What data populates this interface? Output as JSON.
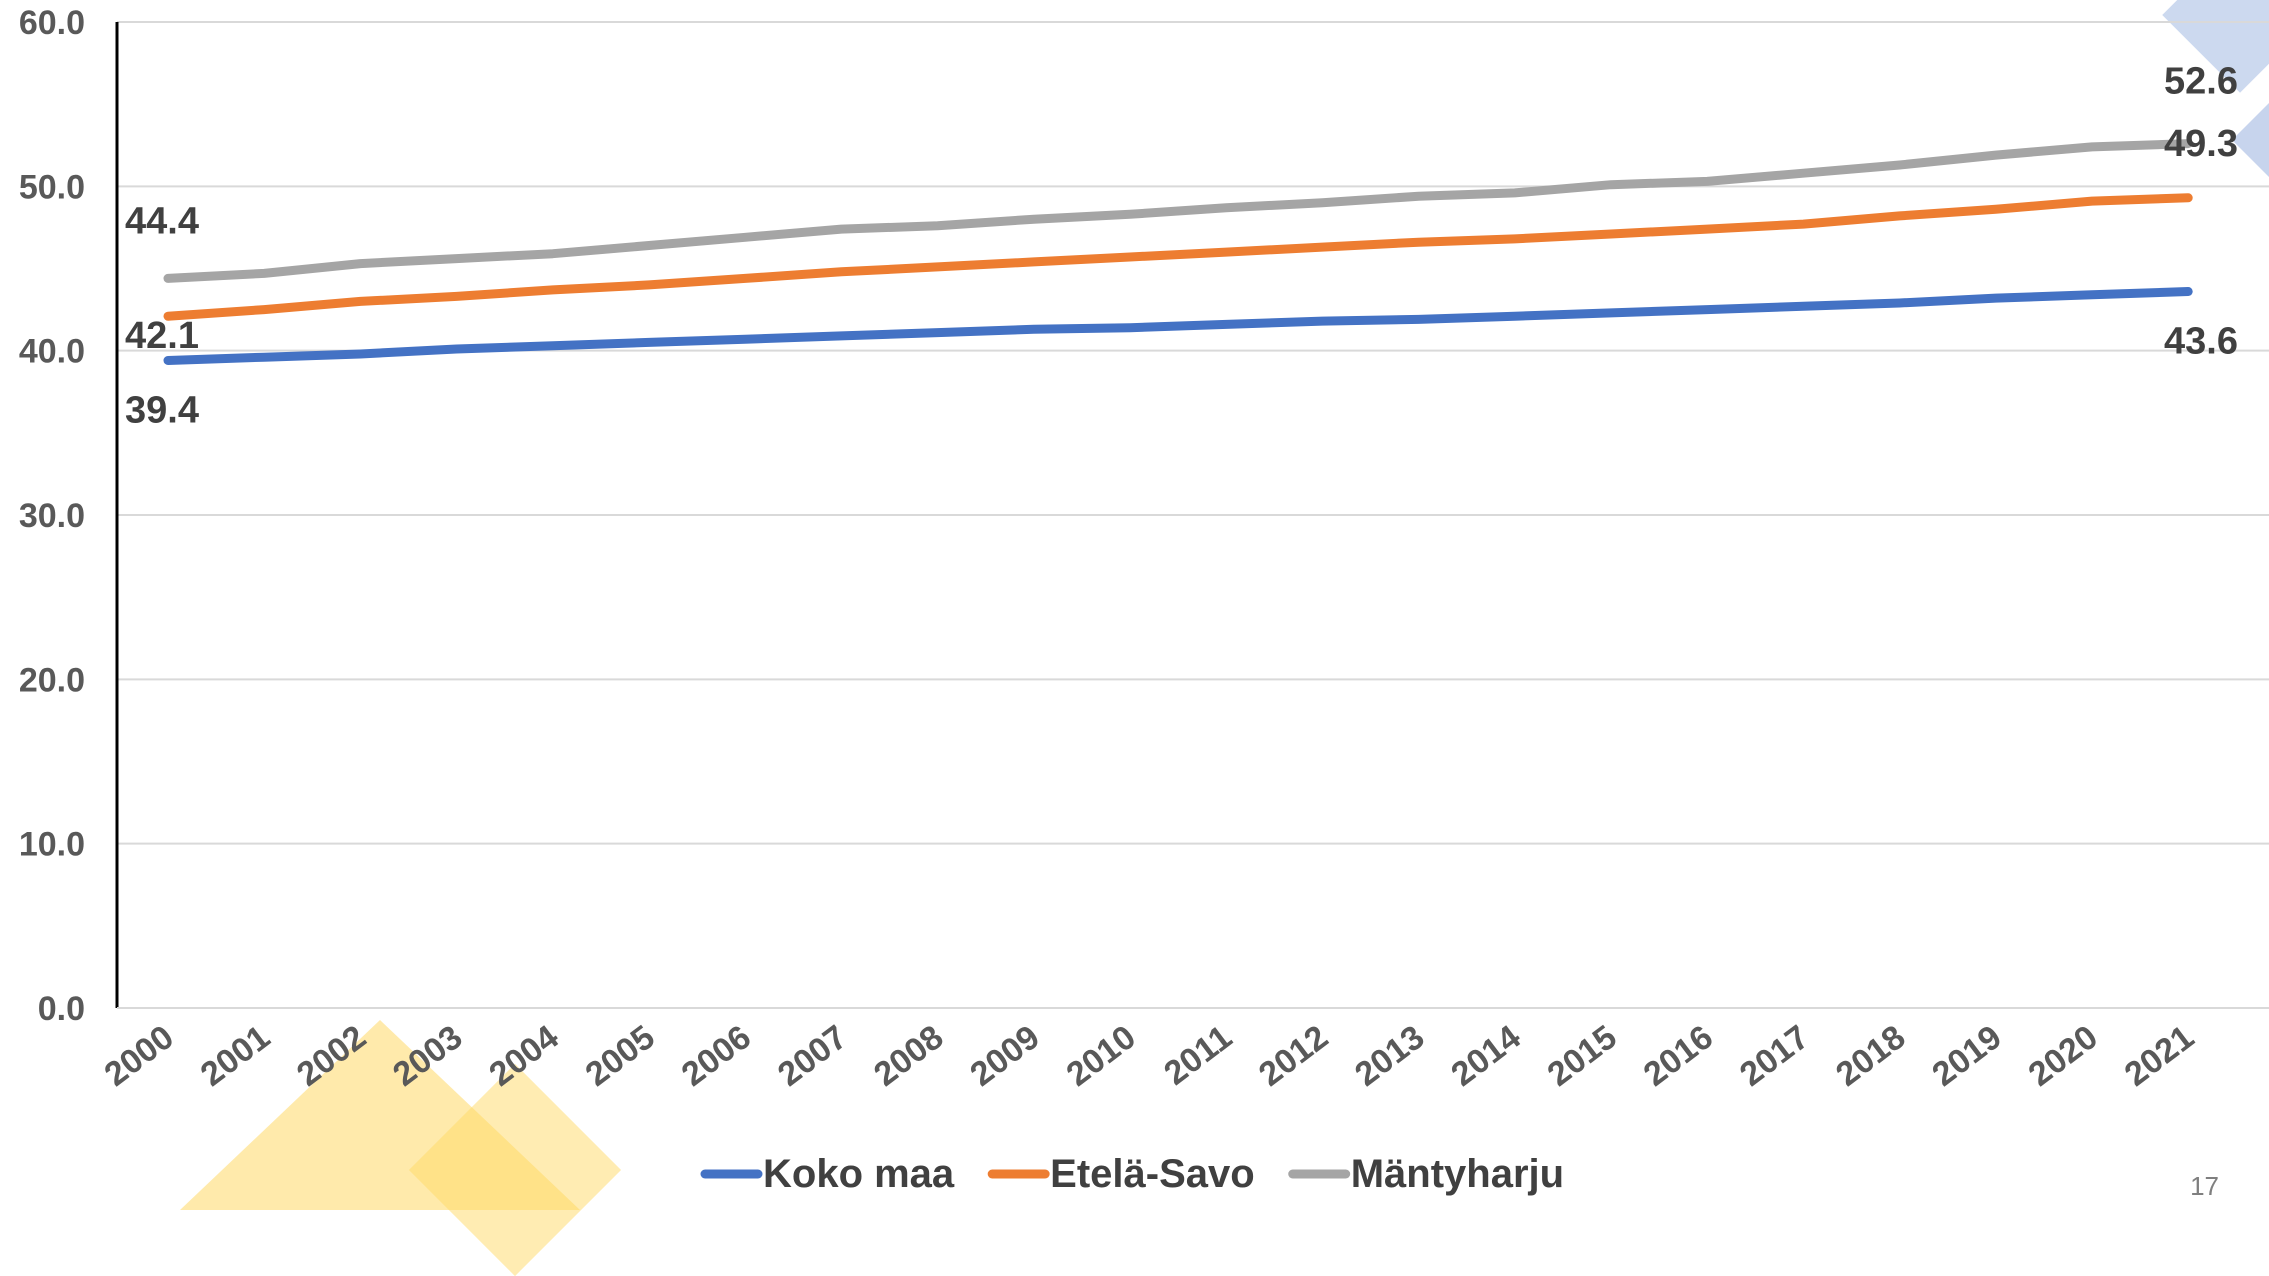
{
  "page": {
    "number": "17"
  },
  "colors": {
    "koko_maa": "#4472C4",
    "etela_savo": "#ED7D31",
    "mantyharju": "#A5A5A5",
    "gridline": "#D9D9D9",
    "axis": "#000000",
    "deco_yellow": "#FFD966",
    "deco_blue": "#8FAADC"
  },
  "chart_data": {
    "type": "line",
    "title": "",
    "xlabel": "",
    "ylabel": "",
    "ylim": [
      0,
      60
    ],
    "yticks": [
      "0.0",
      "10.0",
      "20.0",
      "30.0",
      "40.0",
      "50.0",
      "60.0"
    ],
    "grid": true,
    "legend_position": "bottom",
    "x": [
      "2000",
      "2001",
      "2002",
      "2003",
      "2004",
      "2005",
      "2006",
      "2007",
      "2008",
      "2009",
      "2010",
      "2011",
      "2012",
      "2013",
      "2014",
      "2015",
      "2016",
      "2017",
      "2018",
      "2019",
      "2020",
      "2021"
    ],
    "series": [
      {
        "name": "Koko maa",
        "color": "#4472C4",
        "values": [
          39.4,
          39.6,
          39.8,
          40.1,
          40.3,
          40.5,
          40.7,
          40.9,
          41.1,
          41.3,
          41.4,
          41.6,
          41.8,
          41.9,
          42.1,
          42.3,
          42.5,
          42.7,
          42.9,
          43.2,
          43.4,
          43.6
        ],
        "labels": {
          "first": "39.4",
          "last": "43.6"
        }
      },
      {
        "name": "Etelä-Savo",
        "color": "#ED7D31",
        "values": [
          42.1,
          42.5,
          43.0,
          43.3,
          43.7,
          44.0,
          44.4,
          44.8,
          45.1,
          45.4,
          45.7,
          46.0,
          46.3,
          46.6,
          46.8,
          47.1,
          47.4,
          47.7,
          48.2,
          48.6,
          49.1,
          49.3
        ],
        "labels": {
          "first": "42.1",
          "last": "49.3"
        }
      },
      {
        "name": "Mäntyharju",
        "color": "#A5A5A5",
        "values": [
          44.4,
          44.7,
          45.3,
          45.6,
          45.9,
          46.4,
          46.9,
          47.4,
          47.6,
          48.0,
          48.3,
          48.7,
          49.0,
          49.4,
          49.6,
          50.1,
          50.3,
          50.8,
          51.3,
          51.9,
          52.4,
          52.6
        ],
        "labels": {
          "first": "44.4",
          "last": "52.6"
        }
      }
    ]
  }
}
